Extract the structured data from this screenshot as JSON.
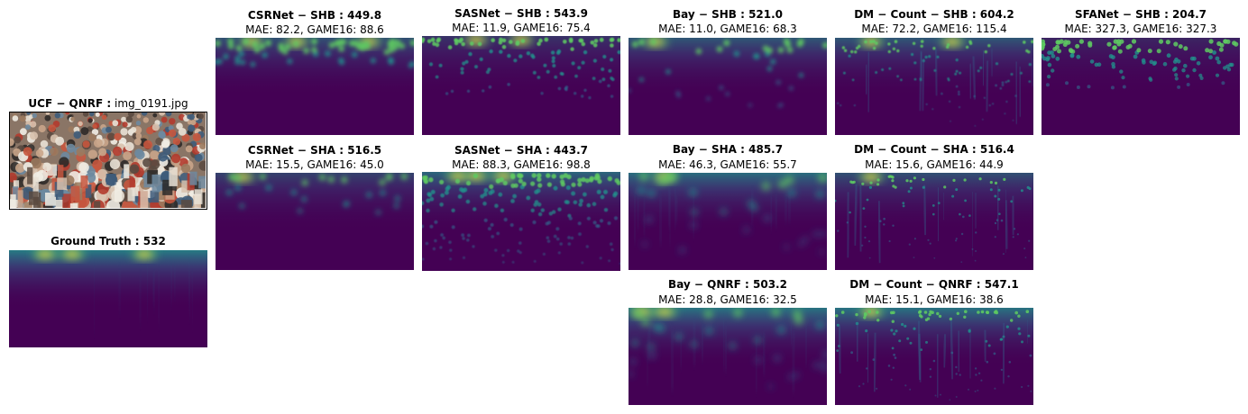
{
  "colors": {
    "map_base": "#440154",
    "map_mid": "#31688e",
    "map_teal": "#21918c",
    "map_green": "#5ec962",
    "map_yellow": "#fde725"
  },
  "source": {
    "dataset": "UCF − QNRF :",
    "filename": "img_0191.jpg"
  },
  "ground_truth": {
    "title": "Ground Truth : 532"
  },
  "panels": [
    {
      "title": "CSRNet − SHB : 449.8",
      "metrics": "MAE: 82.2, GAME16: 88.6"
    },
    {
      "title": "SASNet − SHB : 543.9",
      "metrics": "MAE: 11.9, GAME16: 75.4"
    },
    {
      "title": "Bay − SHB : 521.0",
      "metrics": "MAE: 11.0, GAME16: 68.3"
    },
    {
      "title": "DM − Count − SHB : 604.2",
      "metrics": "MAE: 72.2, GAME16: 115.4"
    },
    {
      "title": "SFANet − SHB : 204.7",
      "metrics": "MAE: 327.3, GAME16: 327.3"
    },
    {
      "title": "CSRNet − SHA : 516.5",
      "metrics": "MAE: 15.5, GAME16: 45.0"
    },
    {
      "title": "SASNet − SHA : 443.7",
      "metrics": "MAE: 88.3, GAME16: 98.8"
    },
    {
      "title": "Bay − SHA : 485.7",
      "metrics": "MAE: 46.3, GAME16: 55.7"
    },
    {
      "title": "DM − Count − SHA : 516.4",
      "metrics": "MAE: 15.6, GAME16: 44.9"
    },
    {
      "title": "Bay − QNRF : 503.2",
      "metrics": "MAE: 28.8, GAME16: 32.5"
    },
    {
      "title": "DM − Count − QNRF : 547.1",
      "metrics": "MAE: 15.1, GAME16: 38.6"
    }
  ]
}
